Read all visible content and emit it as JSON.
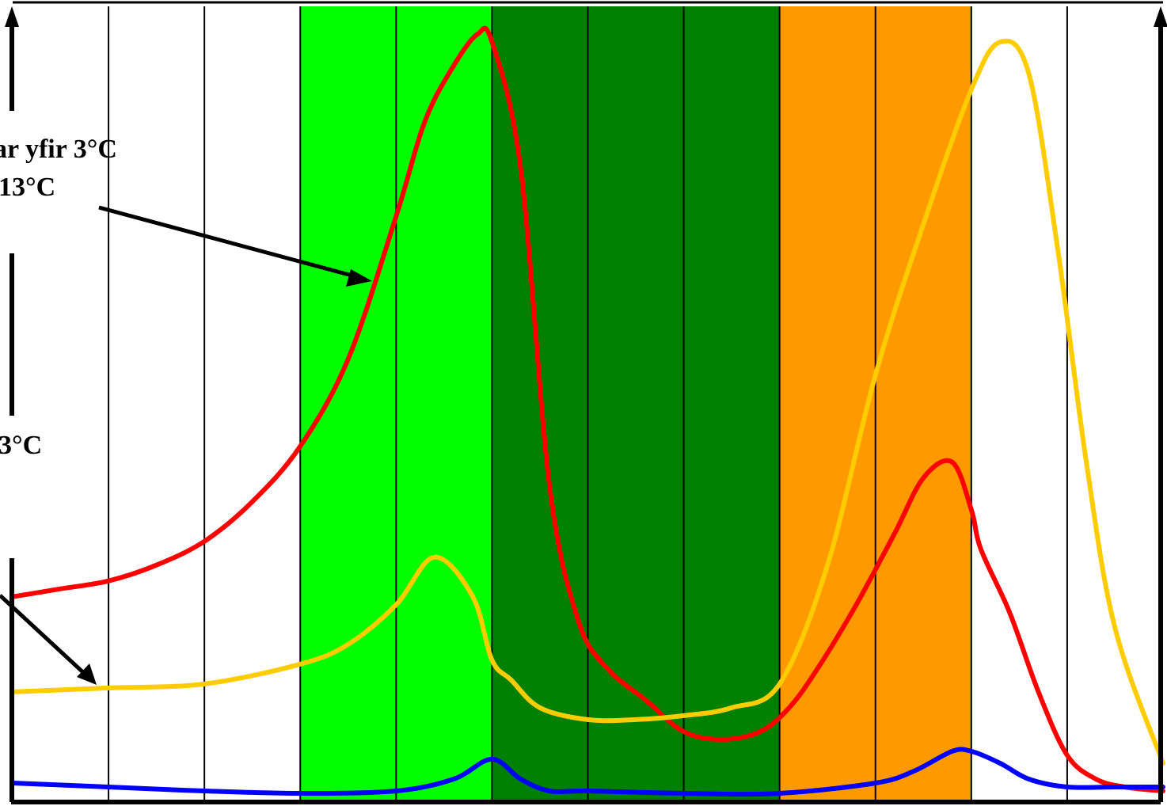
{
  "chart_data": {
    "type": "line",
    "background_bands": [
      {
        "from": 3,
        "to": 5,
        "color": "#00ff00"
      },
      {
        "from": 5,
        "to": 8,
        "color": "#008000"
      },
      {
        "from": 8,
        "to": 10,
        "color": "#ff9900"
      }
    ],
    "xlim": [
      0,
      12
    ],
    "ylim": [
      0,
      100
    ],
    "grid": "vertical",
    "series": [
      {
        "color": "#ff0000",
        "x": [
          0,
          0.5,
          1,
          1.5,
          2,
          2.5,
          3,
          3.5,
          4,
          4.3,
          4.6,
          4.85,
          5,
          5.3,
          5.6,
          5.9,
          6.2,
          6.6,
          7,
          7.4,
          7.8,
          8.1,
          8.4,
          8.8,
          9.2,
          9.5,
          9.8,
          10,
          10.1,
          10.4,
          10.7,
          11,
          11.3,
          11.6,
          12
        ],
        "y": [
          26,
          27,
          28,
          30,
          33,
          38,
          45,
          56,
          74,
          86,
          93,
          97,
          96,
          80,
          40,
          23,
          17,
          13,
          9,
          8,
          9,
          12,
          17,
          25,
          34,
          41,
          43,
          37,
          32,
          24,
          14,
          6,
          3,
          2,
          1.5
        ]
      },
      {
        "color": "#ffcc00",
        "x": [
          0,
          1,
          2,
          3,
          3.5,
          4,
          4.4,
          4.8,
          5,
          5.2,
          5.5,
          6,
          6.5,
          7,
          7.5,
          8,
          8.5,
          9,
          9.5,
          10,
          10.3,
          10.6,
          10.9,
          11.2,
          11.5,
          12
        ],
        "y": [
          14,
          14.5,
          15,
          17.5,
          20,
          25,
          31,
          26,
          18,
          15.5,
          12,
          10.5,
          10.5,
          11,
          12,
          15,
          30,
          54,
          73,
          90,
          96,
          92,
          70,
          43,
          22,
          5
        ]
      },
      {
        "color": "#0000ff",
        "x": [
          0,
          1,
          2,
          3,
          4,
          4.6,
          5,
          5.3,
          5.6,
          6,
          7,
          8,
          9,
          9.4,
          9.8,
          10,
          10.3,
          10.6,
          11,
          11.5,
          12
        ],
        "y": [
          2.5,
          2,
          1.5,
          1.2,
          1.5,
          3,
          5.5,
          3,
          1.5,
          1.5,
          1.2,
          1.2,
          2.5,
          4,
          6.5,
          6.5,
          5,
          3,
          2,
          2,
          2
        ]
      }
    ]
  },
  "annotations": {
    "line1": "ar yfir 3°C",
    "line2": "13°C",
    "line3": "3°C"
  }
}
